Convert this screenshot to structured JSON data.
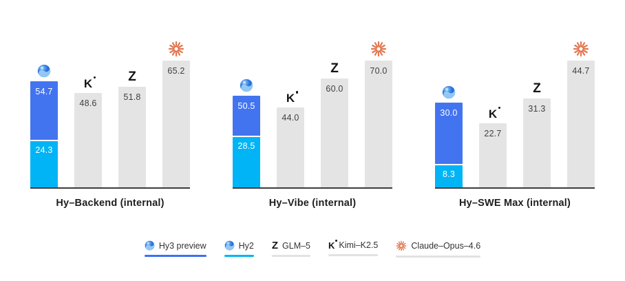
{
  "colors": {
    "hy3_blue": "#4374F0",
    "hy2_cyan": "#00B4F5",
    "bar_gray": "#E4E4E4",
    "axis": "#3C3C3C",
    "claude_coral": "#E2764F",
    "legend_swatch_hy3": "#3D6FF2",
    "legend_swatch_hy2": "#00B4F5",
    "legend_swatch_gray": "#E2E2E2"
  },
  "chart_data": {
    "type": "bar",
    "legend_position": "bottom",
    "grid": false,
    "overlay_note": "first bar of each group: Hy3 preview full bar with Hy2 bottom segment overlay",
    "groups": [
      {
        "title": "Hy–Backend (internal)",
        "bars": [
          {
            "series": "Hy3 preview",
            "value": 54.7,
            "label": "54.7",
            "icon": "hy-logo",
            "overlay": {
              "series": "Hy2",
              "value": 24.3,
              "label": "24.3"
            }
          },
          {
            "series": "Kimi–K2.5",
            "value": 48.6,
            "label": "48.6",
            "icon": "kimi-logo"
          },
          {
            "series": "GLM–5",
            "value": 51.8,
            "label": "51.8",
            "icon": "glm-logo"
          },
          {
            "series": "Claude–Opus–4.6",
            "value": 65.2,
            "label": "65.2",
            "icon": "claude-logo"
          }
        ]
      },
      {
        "title": "Hy–Vibe (internal)",
        "bars": [
          {
            "series": "Hy3 preview",
            "value": 50.5,
            "label": "50.5",
            "icon": "hy-logo",
            "overlay": {
              "series": "Hy2",
              "value": 28.5,
              "label": "28.5"
            }
          },
          {
            "series": "Kimi–K2.5",
            "value": 44.0,
            "label": "44.0",
            "icon": "kimi-logo"
          },
          {
            "series": "GLM–5",
            "value": 60.0,
            "label": "60.0",
            "icon": "glm-logo"
          },
          {
            "series": "Claude–Opus–4.6",
            "value": 70.0,
            "label": "70.0",
            "icon": "claude-logo"
          }
        ]
      },
      {
        "title": "Hy–SWE Max (internal)",
        "bars": [
          {
            "series": "Hy3 preview",
            "value": 30.0,
            "label": "30.0",
            "icon": "hy-logo",
            "overlay": {
              "series": "Hy2",
              "value": 8.3,
              "label": "8.3"
            }
          },
          {
            "series": "Kimi–K2.5",
            "value": 22.7,
            "label": "22.7",
            "icon": "kimi-logo"
          },
          {
            "series": "GLM–5",
            "value": 31.3,
            "label": "31.3",
            "icon": "glm-logo"
          },
          {
            "series": "Claude–Opus–4.6",
            "value": 44.7,
            "label": "44.7",
            "icon": "claude-logo"
          }
        ]
      }
    ]
  },
  "legend": {
    "items": [
      {
        "label": "Hy3 preview",
        "icon": "hy-logo",
        "swatch": "#3D6FF2"
      },
      {
        "label": "Hy2",
        "icon": "hy-logo",
        "swatch": "#00B4F5"
      },
      {
        "label": "GLM–5",
        "icon": "glm-logo",
        "swatch": "#E2E2E2"
      },
      {
        "label": "Kimi–K2.5",
        "icon": "kimi-logo",
        "swatch": "#E2E2E2"
      },
      {
        "label": "Claude–Opus–4.6",
        "icon": "claude-logo",
        "swatch": "#E2E2E2"
      }
    ]
  }
}
